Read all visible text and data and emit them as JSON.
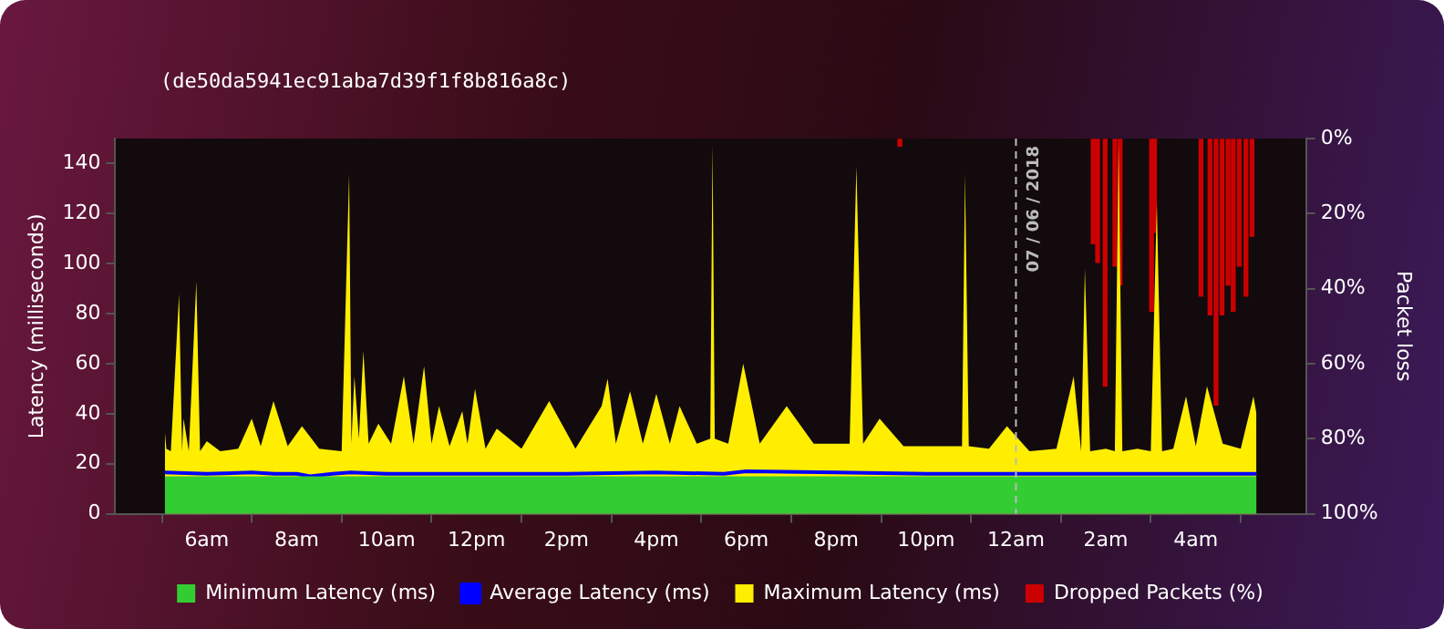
{
  "chart_data": {
    "type": "area",
    "subtitle": "(de50da5941ec91aba7d39f1f8b816a8c)",
    "ylabel": "Latency (milliseconds)",
    "y2label": "Packet loss",
    "xlim": [
      "2018-06-06T05:04",
      "2018-06-07T05:21"
    ],
    "xticks": [
      {
        "value": "2018-06-06T06:00",
        "label": "6am"
      },
      {
        "value": "2018-06-06T08:00",
        "label": "8am"
      },
      {
        "value": "2018-06-06T10:00",
        "label": "10am"
      },
      {
        "value": "2018-06-06T12:00",
        "label": "12pm"
      },
      {
        "value": "2018-06-06T14:00",
        "label": "2pm"
      },
      {
        "value": "2018-06-06T16:00",
        "label": "4pm"
      },
      {
        "value": "2018-06-06T18:00",
        "label": "6pm"
      },
      {
        "value": "2018-06-06T20:00",
        "label": "8pm"
      },
      {
        "value": "2018-06-06T22:00",
        "label": "10pm"
      },
      {
        "value": "2018-06-07T00:00",
        "label": "12am"
      },
      {
        "value": "2018-06-07T02:00",
        "label": "2am"
      },
      {
        "value": "2018-06-07T04:00",
        "label": "4am"
      }
    ],
    "ylim": [
      0,
      150
    ],
    "yticks": [
      0,
      20,
      40,
      60,
      80,
      100,
      120,
      140
    ],
    "y2lim": [
      100,
      0
    ],
    "y2ticks": [
      {
        "value": 0,
        "label": "0%"
      },
      {
        "value": 20,
        "label": "20%"
      },
      {
        "value": 40,
        "label": "40%"
      },
      {
        "value": 60,
        "label": "60%"
      },
      {
        "value": 80,
        "label": "80%"
      },
      {
        "value": 100,
        "label": "100%"
      }
    ],
    "grid": false,
    "legend": "bottom",
    "ref_lines": [
      {
        "axis": "x",
        "value": "2018-06-07T00:00",
        "label": "07 / 06 / 2018",
        "color": "#bbbbbb",
        "line_style": "dashed"
      }
    ],
    "series": [
      {
        "name": "Minimum Latency (ms)",
        "color": "#33cc33",
        "x": [
          "2018-06-06T05:04",
          "2018-06-07T05:21"
        ],
        "values": [
          15,
          15
        ]
      },
      {
        "name": "Average Latency (ms)",
        "type": "line",
        "color": "#0000ff",
        "x": [
          "2018-06-06T05:04",
          "2018-06-06T06:00",
          "2018-06-06T07:00",
          "2018-06-06T07:30",
          "2018-06-06T08:00",
          "2018-06-06T08:18",
          "2018-06-06T08:48",
          "2018-06-06T09:12",
          "2018-06-06T10:00",
          "2018-06-06T12:00",
          "2018-06-06T14:00",
          "2018-06-06T16:00",
          "2018-06-06T17:30",
          "2018-06-06T18:00",
          "2018-06-06T20:00",
          "2018-06-06T22:00",
          "2018-06-07T00:00",
          "2018-06-07T02:00",
          "2018-06-07T04:00",
          "2018-06-07T05:21"
        ],
        "values": [
          16.5,
          16,
          16.5,
          16,
          16,
          15,
          16,
          16.5,
          16,
          16,
          16,
          16.5,
          16,
          17,
          16.5,
          16,
          16,
          16,
          16,
          16
        ]
      },
      {
        "name": "Maximum Latency (ms)",
        "type": "area",
        "color": "#ffee00",
        "x": [
          "2018-06-06T05:04",
          "2018-06-06T05:06",
          "2018-06-06T05:12",
          "2018-06-06T05:23",
          "2018-06-06T05:27",
          "2018-06-06T05:29",
          "2018-06-06T05:36",
          "2018-06-06T05:46",
          "2018-06-06T05:51",
          "2018-06-06T06:00",
          "2018-06-06T06:18",
          "2018-06-06T06:42",
          "2018-06-06T07:00",
          "2018-06-06T07:12",
          "2018-06-06T07:29",
          "2018-06-06T07:48",
          "2018-06-06T08:07",
          "2018-06-06T08:30",
          "2018-06-06T09:00",
          "2018-06-06T09:10",
          "2018-06-06T09:13",
          "2018-06-06T09:17",
          "2018-06-06T09:23",
          "2018-06-06T09:29",
          "2018-06-06T09:36",
          "2018-06-06T09:49",
          "2018-06-06T10:06",
          "2018-06-06T10:23",
          "2018-06-06T10:36",
          "2018-06-06T10:50",
          "2018-06-06T11:00",
          "2018-06-06T11:10",
          "2018-06-06T11:24",
          "2018-06-06T11:41",
          "2018-06-06T11:48",
          "2018-06-06T11:58",
          "2018-06-06T12:12",
          "2018-06-06T12:27",
          "2018-06-06T13:00",
          "2018-06-06T13:37",
          "2018-06-06T14:12",
          "2018-06-06T14:47",
          "2018-06-06T14:55",
          "2018-06-06T15:06",
          "2018-06-06T15:25",
          "2018-06-06T15:42",
          "2018-06-06T16:00",
          "2018-06-06T16:18",
          "2018-06-06T16:31",
          "2018-06-06T16:54",
          "2018-06-06T17:12",
          "2018-06-06T17:15",
          "2018-06-06T17:18",
          "2018-06-06T17:36",
          "2018-06-06T17:56",
          "2018-06-06T18:18",
          "2018-06-06T18:54",
          "2018-06-06T19:30",
          "2018-06-06T20:18",
          "2018-06-06T20:27",
          "2018-06-06T20:36",
          "2018-06-06T20:58",
          "2018-06-06T21:30",
          "2018-06-06T22:12",
          "2018-06-06T22:48",
          "2018-06-06T22:52",
          "2018-06-06T22:57",
          "2018-06-06T23:24",
          "2018-06-06T23:48",
          "2018-06-07T00:18",
          "2018-06-07T00:54",
          "2018-06-07T01:17",
          "2018-06-07T01:27",
          "2018-06-07T01:32",
          "2018-06-07T01:39",
          "2018-06-07T02:00",
          "2018-06-07T02:12",
          "2018-06-07T02:17",
          "2018-06-07T02:22",
          "2018-06-07T02:42",
          "2018-06-07T03:00",
          "2018-06-07T03:08",
          "2018-06-07T03:15",
          "2018-06-07T03:30",
          "2018-06-07T03:47",
          "2018-06-07T04:00",
          "2018-06-07T04:15",
          "2018-06-07T04:36",
          "2018-06-07T05:00",
          "2018-06-07T05:17",
          "2018-06-07T05:21"
        ],
        "values": [
          33,
          26,
          25,
          88,
          25,
          38,
          25,
          93,
          25,
          29,
          25,
          26,
          38,
          27,
          45,
          27,
          35,
          26,
          25,
          136,
          28,
          55,
          30,
          65,
          28,
          36,
          28,
          55,
          28,
          59,
          28,
          43,
          27,
          41,
          28,
          50,
          26,
          34,
          26,
          45,
          26,
          43,
          54,
          28,
          49,
          28,
          48,
          28,
          43,
          28,
          30,
          148,
          30,
          28,
          60,
          28,
          43,
          28,
          28,
          139,
          28,
          38,
          27,
          27,
          27,
          136,
          27,
          26,
          35,
          25,
          26,
          55,
          25,
          98,
          25,
          26,
          25,
          148,
          25,
          26,
          25,
          124,
          25,
          26,
          47,
          27,
          51,
          28,
          26,
          47,
          40
        ]
      },
      {
        "name": "Dropped Packets (%)",
        "type": "bar",
        "axis": "y2",
        "color": "#cc0000",
        "x": [
          "2018-06-06T21:25",
          "2018-06-07T01:43",
          "2018-06-07T01:49",
          "2018-06-07T01:59",
          "2018-06-07T02:12",
          "2018-06-07T02:19",
          "2018-06-07T03:01",
          "2018-06-07T03:05",
          "2018-06-07T04:07",
          "2018-06-07T04:19",
          "2018-06-07T04:27",
          "2018-06-07T04:35",
          "2018-06-07T04:43",
          "2018-06-07T04:50",
          "2018-06-07T04:58",
          "2018-06-07T05:07",
          "2018-06-07T05:15"
        ],
        "values": [
          2,
          28,
          33,
          66,
          34,
          39,
          46,
          25,
          42,
          47,
          71,
          47,
          39,
          46,
          34,
          42,
          26
        ]
      }
    ]
  }
}
